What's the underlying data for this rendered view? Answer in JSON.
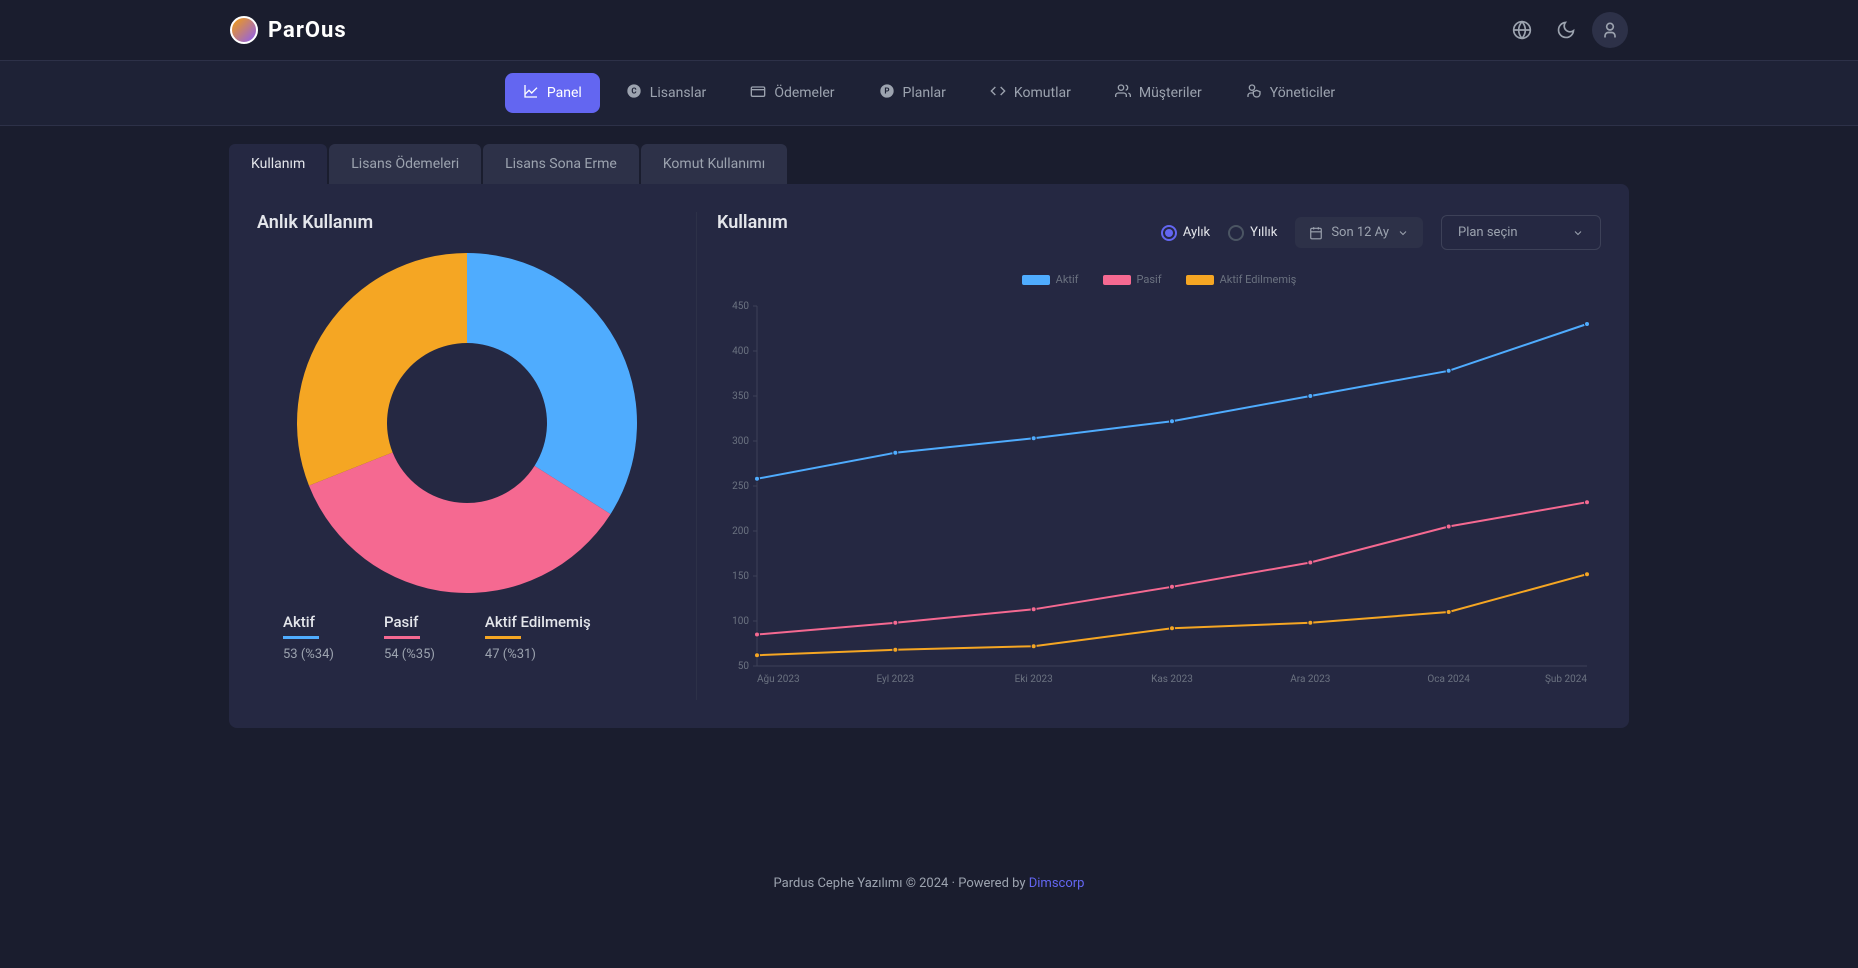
{
  "brand": "ParOus",
  "header_icons": [
    "globe",
    "moon",
    "user"
  ],
  "nav": [
    {
      "label": "Panel",
      "icon": "chart-line",
      "active": true
    },
    {
      "label": "Lisanslar",
      "icon": "copyright"
    },
    {
      "label": "Ödemeler",
      "icon": "wallet"
    },
    {
      "label": "Planlar",
      "icon": "p-circle"
    },
    {
      "label": "Komutlar",
      "icon": "code"
    },
    {
      "label": "Müşteriler",
      "icon": "users"
    },
    {
      "label": "Yöneticiler",
      "icon": "user-shield"
    }
  ],
  "tabs": [
    {
      "label": "Kullanım",
      "active": true
    },
    {
      "label": "Lisans Ödemeleri"
    },
    {
      "label": "Lisans Sona Erme"
    },
    {
      "label": "Komut Kullanımı"
    }
  ],
  "donut": {
    "title": "Anlık Kullanım",
    "slices": [
      {
        "label": "Aktif",
        "value": 53,
        "percent": 34,
        "color": "#4facfe"
      },
      {
        "label": "Pasif",
        "value": 54,
        "percent": 35,
        "color": "#f56991"
      },
      {
        "label": "Aktif Edilmemiş",
        "value": 47,
        "percent": 31,
        "color": "#f5a623"
      }
    ],
    "legend": [
      {
        "label": "Aktif",
        "text": "53 (%34)",
        "color": "#4facfe"
      },
      {
        "label": "Pasif",
        "text": "54 (%35)",
        "color": "#f56991"
      },
      {
        "label": "Aktif Edilmemiş",
        "text": "47 (%31)",
        "color": "#f5a623"
      }
    ]
  },
  "usage": {
    "title": "Kullanım",
    "radio": [
      {
        "label": "Aylık",
        "checked": true
      },
      {
        "label": "Yıllık",
        "checked": false
      }
    ],
    "range_btn": "Son 12 Ay",
    "plan_btn": "Plan seçin",
    "legend": [
      {
        "label": "Aktif",
        "color": "#4facfe"
      },
      {
        "label": "Pasif",
        "color": "#f56991"
      },
      {
        "label": "Aktif Edilmemiş",
        "color": "#f5a623"
      }
    ],
    "ylim": [
      50,
      450
    ],
    "ytick_step": 50,
    "yticks": [
      50,
      100,
      150,
      200,
      250,
      300,
      350,
      400,
      450
    ],
    "x_labels": [
      "Ağu 2023",
      "Eyl 2023",
      "Eki 2023",
      "Kas 2023",
      "Ara 2023",
      "Oca 2024",
      "Şub 2024"
    ],
    "series": [
      {
        "name": "Aktif",
        "color": "#4facfe",
        "values": [
          258,
          287,
          303,
          322,
          350,
          378,
          430
        ]
      },
      {
        "name": "Pasif",
        "color": "#f56991",
        "values": [
          85,
          98,
          113,
          138,
          165,
          205,
          232
        ]
      },
      {
        "name": "Aktif Edilmemiş",
        "color": "#f5a623",
        "values": [
          62,
          68,
          72,
          92,
          98,
          110,
          152
        ]
      }
    ],
    "axis_color": "#3d4158",
    "axis_text_color": "#6b7280",
    "axis_fontsize": 10,
    "point_radius": 2.5,
    "line_width": 2
  },
  "footer": {
    "text": "Pardus Cephe Yazılımı © 2024 · Powered by ",
    "link": "Dimscorp"
  }
}
